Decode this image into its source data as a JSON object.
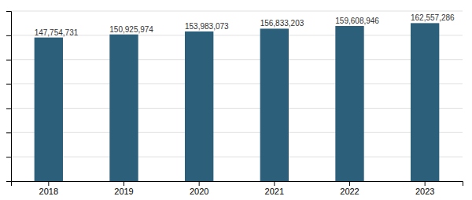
{
  "chart_data": {
    "type": "bar",
    "categories": [
      "2018",
      "2019",
      "2020",
      "2021",
      "2022",
      "2023"
    ],
    "values": [
      147754731,
      150925974,
      153983073,
      156833203,
      159608946,
      162557286
    ],
    "value_labels": [
      "147,754,731",
      "150,925,974",
      "153,983,073",
      "156,833,203",
      "159,608,946",
      "162,557,286"
    ],
    "data_labels": true,
    "color": "#2b5f7a",
    "ylim": [
      0,
      175000000
    ],
    "yticks": [
      0,
      25000000,
      50000000,
      75000000,
      100000000,
      125000000,
      150000000,
      175000000
    ],
    "grid": true,
    "tick_labels": "x"
  }
}
